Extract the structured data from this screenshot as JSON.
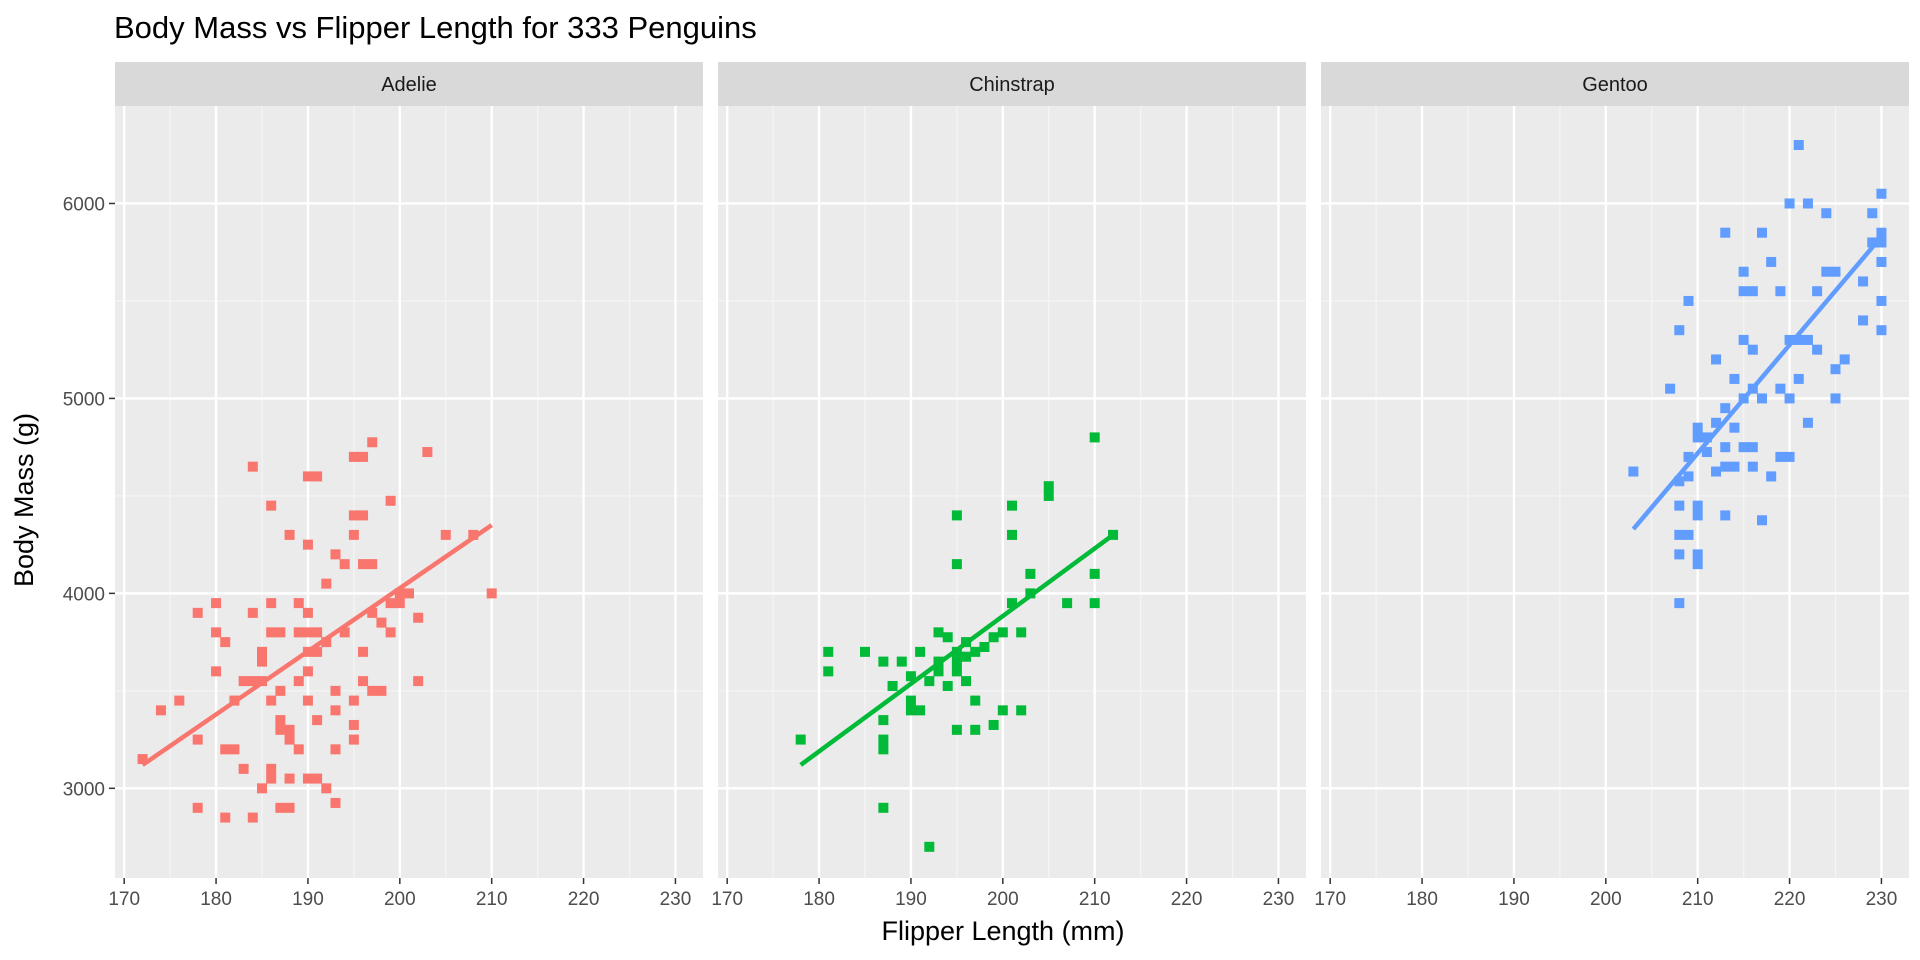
{
  "chart_data": {
    "type": "scatter",
    "title": "Body Mass vs Flipper Length for 333 Penguins",
    "xlabel": "Flipper Length (mm)",
    "ylabel": "Body Mass (g)",
    "xlim": [
      169,
      233
    ],
    "ylim": [
      2540,
      6500
    ],
    "x_ticks": [
      170,
      180,
      190,
      200,
      210,
      220,
      230
    ],
    "y_ticks": [
      3000,
      4000,
      5000,
      6000
    ],
    "grid": true,
    "legend": "none",
    "facets": [
      {
        "name": "Adelie",
        "color": "#F8766D",
        "trend": {
          "x": [
            172,
            210
          ],
          "y": [
            3120,
            4350
          ]
        },
        "points": [
          [
            172,
            3150
          ],
          [
            174,
            3400
          ],
          [
            176,
            3450
          ],
          [
            178,
            2900
          ],
          [
            178,
            3250
          ],
          [
            178,
            3900
          ],
          [
            180,
            3600
          ],
          [
            180,
            3800
          ],
          [
            180,
            3950
          ],
          [
            181,
            2850
          ],
          [
            181,
            3200
          ],
          [
            181,
            3750
          ],
          [
            182,
            3200
          ],
          [
            182,
            3450
          ],
          [
            183,
            3100
          ],
          [
            183,
            3550
          ],
          [
            184,
            2850
          ],
          [
            184,
            3550
          ],
          [
            184,
            3900
          ],
          [
            184,
            4650
          ],
          [
            185,
            3000
          ],
          [
            185,
            3550
          ],
          [
            185,
            3650
          ],
          [
            185,
            3700
          ],
          [
            186,
            3050
          ],
          [
            186,
            3100
          ],
          [
            186,
            3450
          ],
          [
            186,
            3800
          ],
          [
            186,
            3950
          ],
          [
            186,
            4450
          ],
          [
            187,
            2900
          ],
          [
            187,
            3300
          ],
          [
            187,
            3350
          ],
          [
            187,
            3500
          ],
          [
            187,
            3800
          ],
          [
            188,
            2900
          ],
          [
            188,
            3050
          ],
          [
            188,
            3250
          ],
          [
            188,
            3300
          ],
          [
            188,
            4300
          ],
          [
            189,
            3200
          ],
          [
            189,
            3550
          ],
          [
            189,
            3800
          ],
          [
            189,
            3950
          ],
          [
            190,
            3050
          ],
          [
            190,
            3450
          ],
          [
            190,
            3600
          ],
          [
            190,
            3700
          ],
          [
            190,
            3800
          ],
          [
            190,
            3900
          ],
          [
            190,
            4250
          ],
          [
            190,
            4600
          ],
          [
            191,
            3050
          ],
          [
            191,
            3350
          ],
          [
            191,
            3700
          ],
          [
            191,
            3800
          ],
          [
            191,
            4600
          ],
          [
            192,
            3000
          ],
          [
            192,
            3750
          ],
          [
            192,
            4050
          ],
          [
            193,
            2925
          ],
          [
            193,
            3200
          ],
          [
            193,
            3400
          ],
          [
            193,
            3500
          ],
          [
            193,
            4200
          ],
          [
            194,
            3800
          ],
          [
            194,
            4150
          ],
          [
            195,
            3250
          ],
          [
            195,
            3325
          ],
          [
            195,
            3450
          ],
          [
            195,
            4300
          ],
          [
            195,
            4700
          ],
          [
            195,
            4400
          ],
          [
            196,
            3550
          ],
          [
            196,
            3700
          ],
          [
            196,
            4150
          ],
          [
            196,
            4400
          ],
          [
            196,
            4700
          ],
          [
            197,
            3500
          ],
          [
            197,
            3900
          ],
          [
            197,
            4150
          ],
          [
            197,
            4775
          ],
          [
            198,
            3500
          ],
          [
            198,
            3850
          ],
          [
            199,
            3800
          ],
          [
            199,
            3950
          ],
          [
            199,
            4475
          ],
          [
            200,
            3950
          ],
          [
            200,
            4000
          ],
          [
            201,
            4000
          ],
          [
            202,
            3550
          ],
          [
            202,
            3875
          ],
          [
            203,
            4725
          ],
          [
            205,
            4300
          ],
          [
            208,
            4300
          ],
          [
            210,
            4000
          ]
        ]
      },
      {
        "name": "Chinstrap",
        "color": "#00BA38",
        "trend": {
          "x": [
            178,
            212
          ],
          "y": [
            3120,
            4300
          ]
        },
        "points": [
          [
            178,
            3250
          ],
          [
            181,
            3600
          ],
          [
            181,
            3700
          ],
          [
            185,
            3700
          ],
          [
            187,
            2900
          ],
          [
            187,
            3200
          ],
          [
            187,
            3250
          ],
          [
            187,
            3350
          ],
          [
            187,
            3650
          ],
          [
            188,
            3525
          ],
          [
            189,
            3650
          ],
          [
            190,
            3400
          ],
          [
            190,
            3450
          ],
          [
            190,
            3575
          ],
          [
            191,
            3400
          ],
          [
            191,
            3700
          ],
          [
            192,
            2700
          ],
          [
            192,
            3550
          ],
          [
            193,
            3600
          ],
          [
            193,
            3650
          ],
          [
            193,
            3800
          ],
          [
            194,
            3525
          ],
          [
            194,
            3775
          ],
          [
            195,
            3300
          ],
          [
            195,
            3600
          ],
          [
            195,
            3650
          ],
          [
            195,
            3700
          ],
          [
            195,
            4150
          ],
          [
            195,
            4400
          ],
          [
            196,
            3550
          ],
          [
            196,
            3675
          ],
          [
            196,
            3750
          ],
          [
            197,
            3300
          ],
          [
            197,
            3450
          ],
          [
            197,
            3700
          ],
          [
            198,
            3725
          ],
          [
            199,
            3325
          ],
          [
            199,
            3775
          ],
          [
            200,
            3400
          ],
          [
            200,
            3800
          ],
          [
            201,
            3950
          ],
          [
            201,
            4300
          ],
          [
            201,
            4450
          ],
          [
            202,
            3400
          ],
          [
            202,
            3800
          ],
          [
            203,
            4000
          ],
          [
            203,
            4100
          ],
          [
            205,
            4500
          ],
          [
            205,
            4550
          ],
          [
            207,
            3950
          ],
          [
            210,
            3950
          ],
          [
            210,
            4100
          ],
          [
            210,
            4800
          ],
          [
            212,
            4300
          ]
        ]
      },
      {
        "name": "Gentoo",
        "color": "#619CFF",
        "trend": {
          "x": [
            203,
            230
          ],
          "y": [
            4330,
            5830
          ]
        },
        "points": [
          [
            203,
            4625
          ],
          [
            207,
            5050
          ],
          [
            208,
            3950
          ],
          [
            208,
            4200
          ],
          [
            208,
            4300
          ],
          [
            208,
            4450
          ],
          [
            208,
            4575
          ],
          [
            208,
            5350
          ],
          [
            209,
            4300
          ],
          [
            209,
            4600
          ],
          [
            209,
            4700
          ],
          [
            209,
            5500
          ],
          [
            210,
            4150
          ],
          [
            210,
            4200
          ],
          [
            210,
            4400
          ],
          [
            210,
            4450
          ],
          [
            210,
            4800
          ],
          [
            210,
            4850
          ],
          [
            211,
            4725
          ],
          [
            211,
            4800
          ],
          [
            212,
            4625
          ],
          [
            212,
            4875
          ],
          [
            212,
            5200
          ],
          [
            213,
            4400
          ],
          [
            213,
            4650
          ],
          [
            213,
            4750
          ],
          [
            213,
            4950
          ],
          [
            213,
            5850
          ],
          [
            214,
            4650
          ],
          [
            214,
            4850
          ],
          [
            214,
            5100
          ],
          [
            215,
            4750
          ],
          [
            215,
            5000
          ],
          [
            215,
            5300
          ],
          [
            215,
            5550
          ],
          [
            215,
            5650
          ],
          [
            216,
            4650
          ],
          [
            216,
            4750
          ],
          [
            216,
            5050
          ],
          [
            216,
            5250
          ],
          [
            216,
            5550
          ],
          [
            217,
            4375
          ],
          [
            217,
            5000
          ],
          [
            217,
            5850
          ],
          [
            218,
            4600
          ],
          [
            218,
            5700
          ],
          [
            219,
            4700
          ],
          [
            219,
            5050
          ],
          [
            219,
            5550
          ],
          [
            220,
            4700
          ],
          [
            220,
            5000
          ],
          [
            220,
            5300
          ],
          [
            220,
            6000
          ],
          [
            221,
            5100
          ],
          [
            221,
            5300
          ],
          [
            221,
            6300
          ],
          [
            222,
            4875
          ],
          [
            222,
            5300
          ],
          [
            222,
            6000
          ],
          [
            223,
            5250
          ],
          [
            223,
            5550
          ],
          [
            224,
            5650
          ],
          [
            224,
            5950
          ],
          [
            225,
            5000
          ],
          [
            225,
            5150
          ],
          [
            225,
            5650
          ],
          [
            226,
            5200
          ],
          [
            228,
            5400
          ],
          [
            228,
            5600
          ],
          [
            229,
            5800
          ],
          [
            229,
            5950
          ],
          [
            230,
            5350
          ],
          [
            230,
            5500
          ],
          [
            230,
            5700
          ],
          [
            230,
            5800
          ],
          [
            230,
            5850
          ],
          [
            230,
            6050
          ]
        ]
      }
    ]
  }
}
